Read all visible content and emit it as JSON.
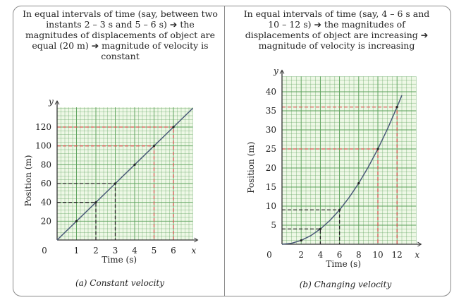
{
  "panels": [
    {
      "note": "In equal intervals of time (say, between two instants 2 – 3 s and 5 – 6 s) ➔ the magnitudes of displacements of object are equal (20 m) ➔ magnitude of velocity is constant",
      "caption": "(a) Constant velocity"
    },
    {
      "note": "In equal intervals of time (say, 4 – 6 s and 10 – 12 s) ➔ the magnitudes of displacements of object are increasing ➔ magnitude of velocity is increasing",
      "caption": "(b) Changing velocity"
    }
  ],
  "chart_data": [
    {
      "type": "line",
      "title": "(a) Constant velocity",
      "xlabel": "Time (s)",
      "ylabel": "Position (m)",
      "x_axis_symbol": "x",
      "y_axis_symbol": "y",
      "origin_label": "0",
      "xticks": [
        1,
        2,
        3,
        4,
        5,
        6
      ],
      "yticks": [
        20,
        40,
        60,
        80,
        100,
        120
      ],
      "xlim": [
        0,
        7
      ],
      "ylim": [
        0,
        141
      ],
      "grid": true,
      "grid_color": "#5aa05a",
      "background": "#eef8e6",
      "line_color": "#4a5a78",
      "series": [
        {
          "x": [
            0,
            1,
            2,
            3,
            4,
            5,
            6,
            7
          ],
          "y": [
            0,
            20,
            40,
            60,
            80,
            100,
            120,
            140
          ]
        }
      ],
      "points": [
        {
          "x": 1,
          "y": 20
        },
        {
          "x": 2,
          "y": 40
        },
        {
          "x": 3,
          "y": 60
        },
        {
          "x": 4,
          "y": 80
        },
        {
          "x": 5,
          "y": 100
        },
        {
          "x": 6,
          "y": 120
        }
      ],
      "guides": [
        {
          "x": 2,
          "y": 40,
          "color": "#222222"
        },
        {
          "x": 3,
          "y": 60,
          "color": "#222222"
        },
        {
          "x": 5,
          "y": 100,
          "color": "#d9534f"
        },
        {
          "x": 6,
          "y": 120,
          "color": "#d9534f"
        }
      ]
    },
    {
      "type": "line",
      "title": "(b) Changing velocity",
      "xlabel": "Time (s)",
      "ylabel": "Position (m)",
      "x_axis_symbol": "x",
      "y_axis_symbol": "y",
      "origin_label": "0",
      "xticks": [
        2,
        4,
        6,
        8,
        10,
        12
      ],
      "yticks": [
        5,
        10,
        15,
        20,
        25,
        30,
        35,
        40
      ],
      "xlim": [
        0,
        14
      ],
      "ylim": [
        0,
        44
      ],
      "grid": true,
      "grid_color": "#5aa05a",
      "background": "#eef8e6",
      "line_color": "#4a5a78",
      "series": [
        {
          "x": [
            0,
            1,
            2,
            3,
            4,
            5,
            6,
            7,
            8,
            9,
            10,
            11,
            12,
            12.5
          ],
          "y": [
            0,
            0.25,
            1,
            2.25,
            4,
            6.25,
            9,
            12.25,
            16,
            20.25,
            25,
            30.25,
            36,
            39.06
          ]
        }
      ],
      "points": [
        {
          "x": 2,
          "y": 1
        },
        {
          "x": 4,
          "y": 4
        },
        {
          "x": 6,
          "y": 9
        },
        {
          "x": 8,
          "y": 16
        },
        {
          "x": 10,
          "y": 25
        },
        {
          "x": 12,
          "y": 36
        }
      ],
      "guides": [
        {
          "x": 4,
          "y": 4,
          "color": "#222222"
        },
        {
          "x": 6,
          "y": 9,
          "color": "#222222"
        },
        {
          "x": 10,
          "y": 25,
          "color": "#d9534f"
        },
        {
          "x": 12,
          "y": 36,
          "color": "#d9534f"
        }
      ]
    }
  ]
}
